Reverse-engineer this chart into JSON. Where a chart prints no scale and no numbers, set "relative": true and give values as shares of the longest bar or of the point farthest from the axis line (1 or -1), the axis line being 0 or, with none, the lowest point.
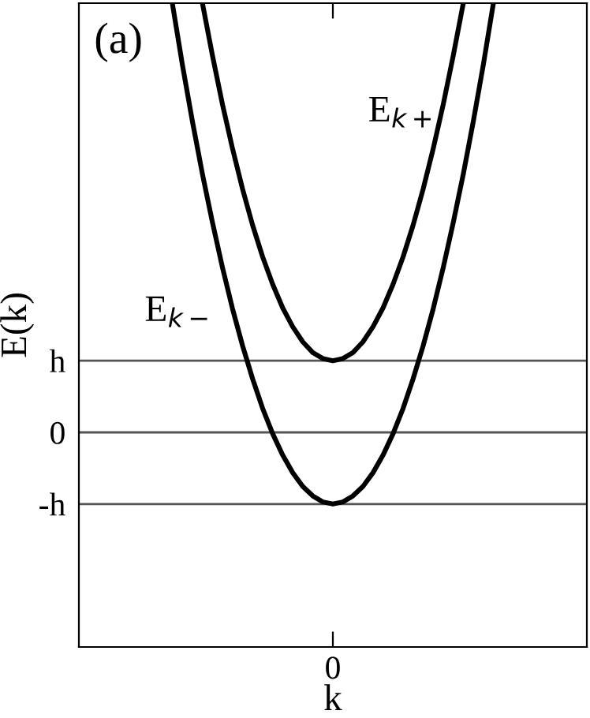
{
  "chart_data": {
    "type": "line",
    "relative": true,
    "xlabel": "k",
    "ylabel": "E(k)",
    "annotations": [
      "(a)",
      "0"
    ],
    "categories": [
      null,
      null,
      null,
      null,
      null,
      null,
      null,
      null,
      null,
      null,
      null,
      null,
      null,
      null,
      null,
      null,
      null,
      null,
      null,
      null,
      null,
      null,
      null,
      null,
      null,
      null,
      null,
      null,
      null,
      null,
      null,
      null,
      null
    ],
    "grid": false,
    "legend": false,
    "marker": "none",
    "line_style": "solid",
    "ref_lines": [
      {
        "axis": "y",
        "value": 0.167,
        "label": "h",
        "color": "#555555"
      },
      {
        "axis": "y",
        "value": 0,
        "label": "0",
        "color": "#555555"
      },
      {
        "axis": "y",
        "value": -0.167,
        "label": "-h",
        "color": "#555555"
      }
    ],
    "series": [
      {
        "name": "E$_{k−}$",
        "color": "#000000",
        "values": [
          1,
          0.857,
          0.725,
          0.602,
          0.489,
          0.384,
          0.288,
          0.202,
          0.125,
          0.056,
          -0.003,
          -0.053,
          -0.094,
          -0.126,
          -0.148,
          -0.162,
          -0.167,
          -0.162,
          -0.148,
          -0.126,
          -0.094,
          -0.053,
          -0.003,
          0.056,
          0.125,
          0.202,
          0.288,
          0.384,
          0.489,
          0.602,
          0.725,
          0.857,
          1
        ]
      },
      {
        "name": "E$_{k+}$",
        "color": "#000000",
        "values": [
          null,
          null,
          null,
          1,
          0.878,
          0.764,
          0.661,
          0.567,
          0.483,
          0.409,
          0.345,
          0.29,
          0.246,
          0.211,
          0.186,
          0.172,
          0.167,
          0.172,
          0.186,
          0.211,
          0.246,
          0.29,
          0.345,
          0.409,
          0.483,
          0.567,
          0.661,
          0.764,
          0.878,
          1,
          null,
          null,
          null
        ]
      }
    ]
  }
}
